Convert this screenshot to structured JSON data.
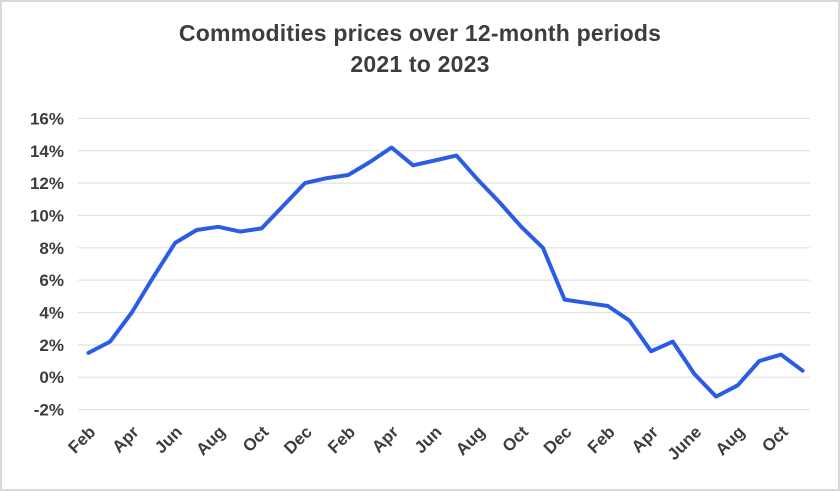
{
  "chart": {
    "title_line1": "Commodities prices over 12-month periods",
    "title_line2": "2021 to 2023"
  },
  "chart_data": {
    "type": "line",
    "title": "Commodities prices over 12-month periods 2021 to 2023",
    "xlabel": "",
    "ylabel": "",
    "ylim": [
      -2,
      16
    ],
    "grid": "horizontal-only",
    "legend": "none",
    "y_ticks": [
      "16%",
      "14%",
      "12%",
      "10%",
      "8%",
      "6%",
      "4%",
      "2%",
      "0%",
      "-2%"
    ],
    "x_tick_labels": [
      "Feb",
      "Apr",
      "Jun",
      "Aug",
      "Oct",
      "Dec",
      "Feb",
      "Apr",
      "Jun",
      "Aug",
      "Oct",
      "Dec",
      "Feb",
      "Apr",
      "June",
      "Aug",
      "Oct"
    ],
    "x_tick_every_n_points": 2,
    "points_span": "monthly, Feb 2021 through Nov 2023",
    "series": [
      {
        "name": "Commodities prices, 12-month % change",
        "values": [
          1.5,
          2.2,
          4.0,
          6.2,
          8.3,
          9.1,
          9.3,
          9.0,
          9.2,
          10.6,
          12.0,
          12.3,
          12.5,
          13.3,
          14.2,
          13.1,
          13.4,
          13.7,
          12.2,
          10.8,
          9.3,
          8.0,
          4.8,
          4.6,
          4.4,
          3.5,
          1.6,
          2.2,
          0.2,
          -1.2,
          -0.5,
          1.0,
          1.4,
          0.4
        ]
      }
    ],
    "colors": {
      "line": "#2b5ce4",
      "grid": "#e2e2e2",
      "text": "#3d3d3d",
      "card_border": "#d9d9d9",
      "background": "#ffffff"
    }
  }
}
